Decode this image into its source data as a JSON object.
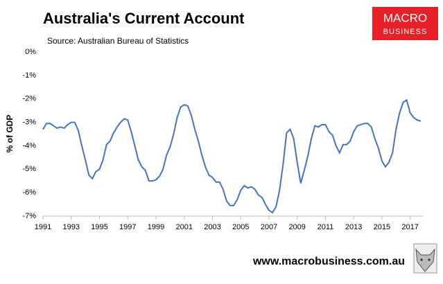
{
  "chart_data": {
    "type": "line",
    "title": "Australia's Current Account",
    "subtitle": "Source: Australian Bureau of Statistics",
    "y_label": "% of GDP",
    "logo": [
      "MACRO",
      "BUSINESS"
    ],
    "footer": "www.macrobusiness.com.au",
    "xlim": [
      1991,
      2017.9
    ],
    "xticks": [
      1991,
      1993,
      1995,
      1997,
      1999,
      2001,
      2003,
      2005,
      2007,
      2009,
      2011,
      2013,
      2015,
      2017
    ],
    "ylim": [
      -7,
      0
    ],
    "yticks": [
      {
        "value": 0,
        "label": "0%"
      },
      {
        "value": -1,
        "label": "-1%"
      },
      {
        "value": -2,
        "label": "-2%"
      },
      {
        "value": -3,
        "label": "-3%"
      },
      {
        "value": -4,
        "label": "-4%"
      },
      {
        "value": -5,
        "label": "-5%"
      },
      {
        "value": -6,
        "label": "-6%"
      },
      {
        "value": -7,
        "label": "-7%"
      }
    ],
    "grid": false,
    "x": [
      1991,
      1991.25,
      1991.5,
      1991.75,
      1992,
      1992.25,
      1992.5,
      1992.75,
      1993,
      1993.25,
      1993.5,
      1993.75,
      1994,
      1994.25,
      1994.5,
      1994.75,
      1995,
      1995.25,
      1995.5,
      1995.75,
      1996,
      1996.25,
      1996.5,
      1996.75,
      1997,
      1997.25,
      1997.5,
      1997.75,
      1998,
      1998.25,
      1998.5,
      1998.75,
      1999,
      1999.25,
      1999.5,
      1999.75,
      2000,
      2000.25,
      2000.5,
      2000.75,
      2001,
      2001.25,
      2001.5,
      2001.75,
      2002,
      2002.25,
      2002.5,
      2002.75,
      2003,
      2003.25,
      2003.5,
      2003.75,
      2004,
      2004.25,
      2004.5,
      2004.75,
      2005,
      2005.25,
      2005.5,
      2005.75,
      2006,
      2006.25,
      2006.5,
      2006.75,
      2007,
      2007.25,
      2007.5,
      2007.75,
      2008,
      2008.25,
      2008.5,
      2008.75,
      2009,
      2009.25,
      2009.5,
      2009.75,
      2010,
      2010.25,
      2010.5,
      2010.75,
      2011,
      2011.25,
      2011.5,
      2011.75,
      2012,
      2012.25,
      2012.5,
      2012.75,
      2013,
      2013.25,
      2013.5,
      2013.75,
      2014,
      2014.25,
      2014.5,
      2014.75,
      2015,
      2015.25,
      2015.5,
      2015.75,
      2016,
      2016.25,
      2016.5,
      2016.75,
      2017,
      2017.25,
      2017.5,
      2017.75
    ],
    "series": [
      {
        "color": "#4472c4",
        "values": [
          -3.3,
          -3.05,
          -3.05,
          -3.15,
          -3.25,
          -3.2,
          -3.25,
          -3.1,
          -3.0,
          -3.0,
          -3.35,
          -4.0,
          -4.6,
          -5.25,
          -5.4,
          -5.1,
          -5.0,
          -4.6,
          -3.95,
          -3.8,
          -3.45,
          -3.2,
          -3.0,
          -2.85,
          -2.9,
          -3.4,
          -4.0,
          -4.6,
          -4.9,
          -5.05,
          -5.5,
          -5.5,
          -5.45,
          -5.3,
          -5.0,
          -4.4,
          -4.05,
          -3.5,
          -2.8,
          -2.35,
          -2.25,
          -2.3,
          -2.7,
          -3.3,
          -3.8,
          -4.4,
          -4.9,
          -5.25,
          -5.35,
          -5.55,
          -5.55,
          -5.85,
          -6.35,
          -6.55,
          -6.55,
          -6.3,
          -5.9,
          -5.7,
          -5.8,
          -5.75,
          -5.85,
          -6.1,
          -6.2,
          -6.5,
          -6.75,
          -6.85,
          -6.6,
          -5.9,
          -4.8,
          -3.45,
          -3.3,
          -3.7,
          -4.7,
          -5.6,
          -5.05,
          -4.45,
          -3.7,
          -3.15,
          -3.2,
          -3.1,
          -3.1,
          -3.4,
          -3.55,
          -4.0,
          -4.3,
          -3.95,
          -3.95,
          -3.8,
          -3.4,
          -3.15,
          -3.1,
          -3.05,
          -3.05,
          -3.2,
          -3.7,
          -4.1,
          -4.65,
          -4.9,
          -4.7,
          -4.3,
          -3.3,
          -2.6,
          -2.15,
          -2.05,
          -2.6,
          -2.8,
          -2.9,
          -2.95
        ]
      }
    ]
  }
}
